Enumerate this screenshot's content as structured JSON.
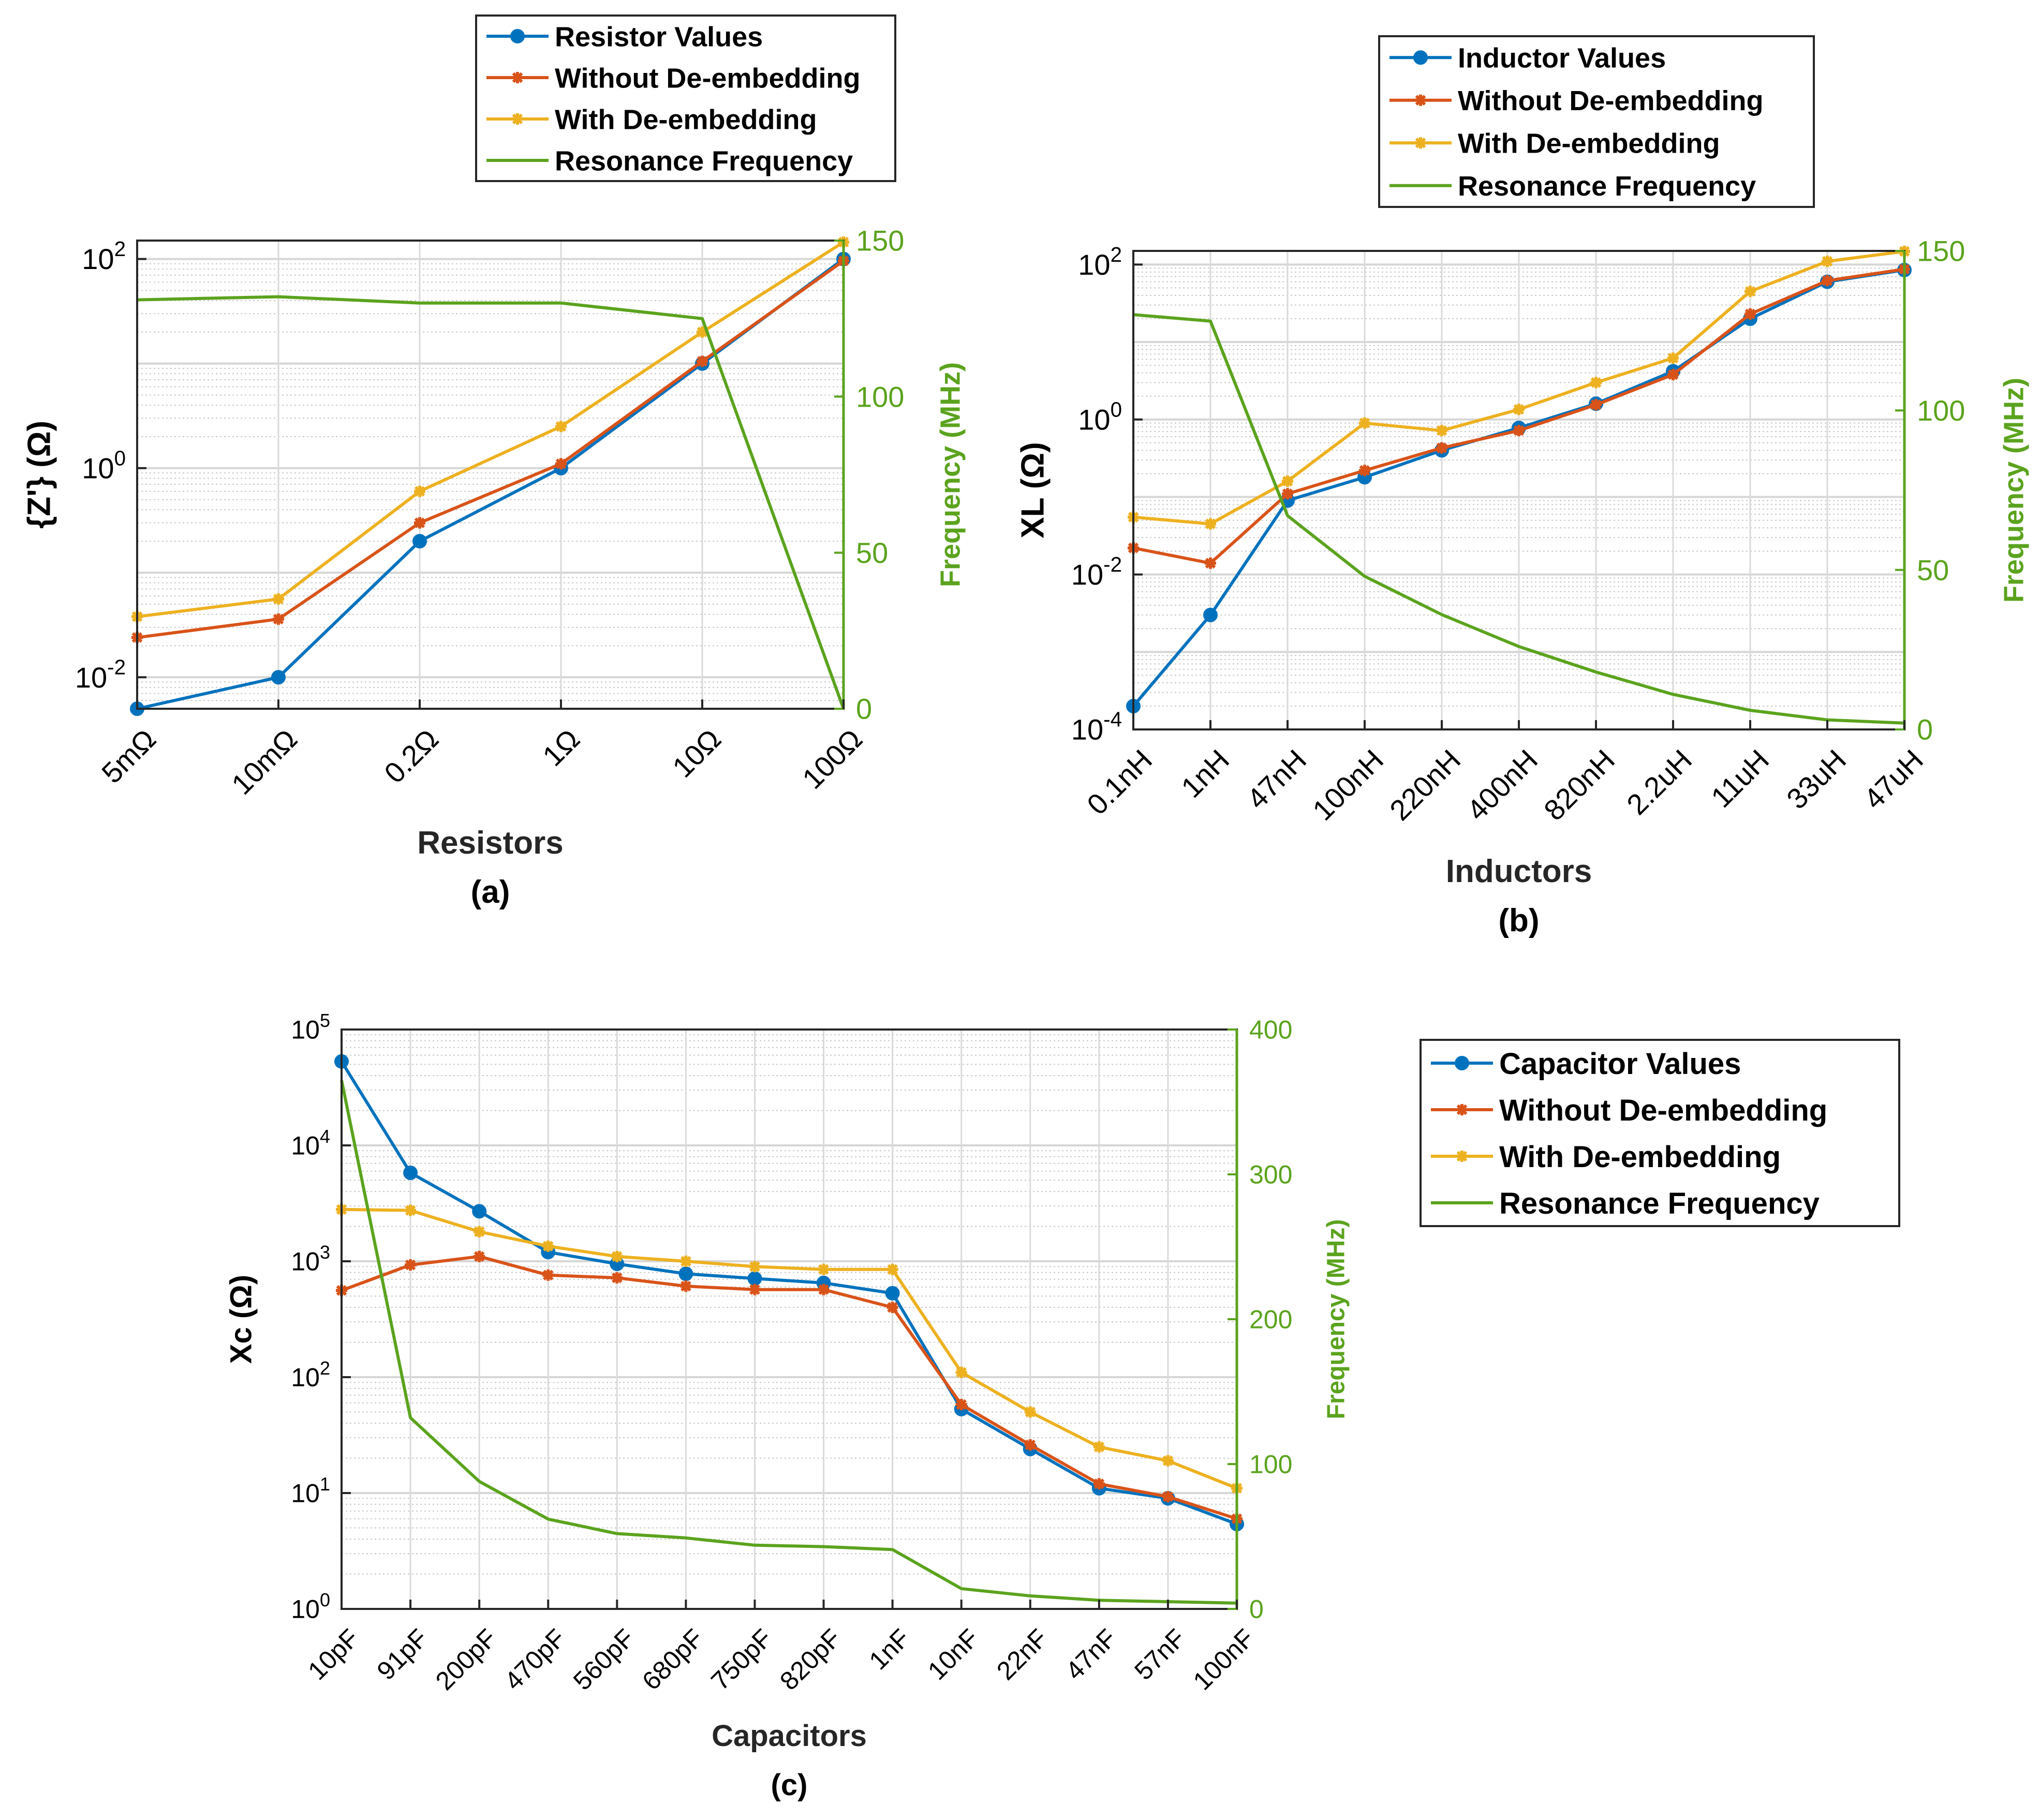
{
  "colors": {
    "blue": "#0072BD",
    "red": "#D95319",
    "yellow": "#EDB120",
    "green": "#5BA31E"
  },
  "chart_data": [
    {
      "id": "a",
      "type": "line",
      "caption": "(a)",
      "xlabel": "Resistors",
      "ylabel": "{Z'} (Ω)",
      "ylabel_right": "Frequency (MHz)",
      "yscale": "log",
      "ylim": [
        0.005,
        150
      ],
      "ylim_right": [
        0,
        150
      ],
      "yticks": [
        {
          "base": "10",
          "exp": "2",
          "v": 100
        },
        {
          "base": "10",
          "exp": "0",
          "v": 1
        },
        {
          "base": "10",
          "exp": "-2",
          "v": 0.01
        }
      ],
      "yticks_right": [
        0,
        50,
        100,
        150
      ],
      "categories": [
        "5mΩ",
        "10mΩ",
        "0.2Ω",
        "1Ω",
        "10Ω",
        "100Ω"
      ],
      "legend": [
        "Resistor Values",
        "Without De-embedding",
        "With De-embedding",
        "Resonance Frequency"
      ],
      "series": [
        {
          "name": "Resistor Values",
          "axis": "left",
          "color": "blue",
          "marker": "circle",
          "values": [
            0.005,
            0.01,
            0.2,
            1,
            10,
            100
          ]
        },
        {
          "name": "Without De-embedding",
          "axis": "left",
          "color": "red",
          "marker": "star",
          "values": [
            0.024,
            0.036,
            0.3,
            1.1,
            10.5,
            96
          ]
        },
        {
          "name": "With De-embedding",
          "axis": "left",
          "color": "yellow",
          "marker": "star",
          "values": [
            0.038,
            0.056,
            0.6,
            2.5,
            20,
            145
          ]
        },
        {
          "name": "Resonance Frequency",
          "axis": "right",
          "color": "green",
          "marker": "none",
          "values": [
            131,
            132,
            130,
            130,
            125,
            0
          ]
        }
      ]
    },
    {
      "id": "b",
      "type": "line",
      "caption": "(b)",
      "xlabel": "Inductors",
      "ylabel": "XL (Ω)",
      "ylabel_right": "Frequency (MHz)",
      "yscale": "log",
      "ylim": [
        0.0001,
        150
      ],
      "ylim_right": [
        0,
        150
      ],
      "yticks": [
        {
          "base": "10",
          "exp": "2",
          "v": 100
        },
        {
          "base": "10",
          "exp": "0",
          "v": 1
        },
        {
          "base": "10",
          "exp": "-2",
          "v": 0.01
        },
        {
          "base": "10",
          "exp": "-4",
          "v": 0.0001
        }
      ],
      "yticks_right": [
        0,
        50,
        100,
        150
      ],
      "categories": [
        "0.1nH",
        "1nH",
        "47nH",
        "100nH",
        "220nH",
        "400nH",
        "820nH",
        "2.2uH",
        "11uH",
        "33uH",
        "47uH"
      ],
      "legend": [
        "Inductor Values",
        "Without De-embedding",
        "With De-embedding",
        "Resonance Frequency"
      ],
      "series": [
        {
          "name": "Inductor Values",
          "axis": "left",
          "color": "blue",
          "marker": "circle",
          "values": [
            0.0002,
            0.003,
            0.09,
            0.18,
            0.4,
            0.78,
            1.6,
            4.2,
            20,
            60,
            85
          ]
        },
        {
          "name": "Without De-embedding",
          "axis": "left",
          "color": "red",
          "marker": "star",
          "values": [
            0.022,
            0.014,
            0.11,
            0.22,
            0.43,
            0.72,
            1.55,
            3.8,
            23,
            62,
            87
          ]
        },
        {
          "name": "With De-embedding",
          "axis": "left",
          "color": "yellow",
          "marker": "star",
          "values": [
            0.055,
            0.045,
            0.16,
            0.9,
            0.72,
            1.35,
            3.0,
            6.2,
            45,
            110,
            148
          ]
        },
        {
          "name": "Resonance Frequency",
          "axis": "right",
          "color": "green",
          "marker": "none",
          "values": [
            130,
            128,
            67,
            48,
            36,
            26,
            18,
            11,
            6,
            3,
            2
          ]
        }
      ]
    },
    {
      "id": "c",
      "type": "line",
      "caption": "(c)",
      "xlabel": "Capacitors",
      "ylabel": "Xc (Ω)",
      "ylabel_right": "Frequency (MHz)",
      "yscale": "log",
      "ylim": [
        1,
        100000
      ],
      "ylim_right": [
        0,
        400
      ],
      "yticks": [
        {
          "base": "10",
          "exp": "5",
          "v": 100000
        },
        {
          "base": "10",
          "exp": "4",
          "v": 10000
        },
        {
          "base": "10",
          "exp": "3",
          "v": 1000
        },
        {
          "base": "10",
          "exp": "2",
          "v": 100
        },
        {
          "base": "10",
          "exp": "1",
          "v": 10
        },
        {
          "base": "10",
          "exp": "0",
          "v": 1
        }
      ],
      "yticks_right": [
        0,
        100,
        200,
        300,
        400
      ],
      "categories": [
        "10pF",
        "91pF",
        "200pF",
        "470pF",
        "560pF",
        "680pF",
        "750pF",
        "820pF",
        "1nF",
        "10nF",
        "22nF",
        "47nF",
        "57nF",
        "100nF"
      ],
      "legend": [
        "Capacitor Values",
        "Without De-embedding",
        "With De-embedding",
        "Resonance Frequency"
      ],
      "series": [
        {
          "name": "Capacitor Values",
          "axis": "left",
          "color": "blue",
          "marker": "circle",
          "values": [
            53000,
            5800,
            2700,
            1200,
            950,
            780,
            710,
            650,
            530,
            53,
            24,
            11,
            9,
            5.4
          ]
        },
        {
          "name": "Without De-embedding",
          "axis": "left",
          "color": "red",
          "marker": "star",
          "values": [
            560,
            930,
            1100,
            760,
            720,
            610,
            570,
            570,
            400,
            58,
            26,
            12,
            9.3,
            6.0
          ]
        },
        {
          "name": "With De-embedding",
          "axis": "left",
          "color": "yellow",
          "marker": "star",
          "values": [
            2800,
            2750,
            1800,
            1350,
            1100,
            1000,
            900,
            850,
            850,
            110,
            50,
            25,
            19,
            11
          ]
        },
        {
          "name": "Resonance Frequency",
          "axis": "right",
          "color": "green",
          "marker": "none",
          "values": [
            365,
            132,
            88,
            62,
            52,
            49,
            44,
            43,
            41,
            14,
            9,
            6,
            5,
            4
          ]
        }
      ]
    }
  ]
}
